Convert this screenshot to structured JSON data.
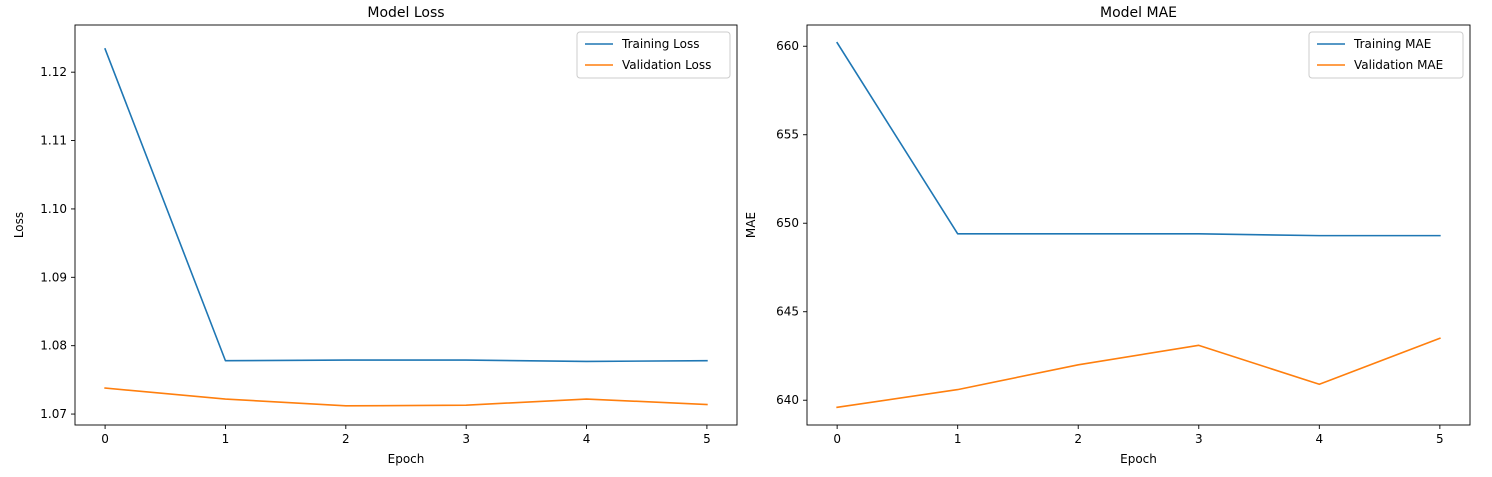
{
  "chart_data": [
    {
      "type": "line",
      "title": "Model Loss",
      "xlabel": "Epoch",
      "ylabel": "Loss",
      "x": [
        0,
        1,
        2,
        3,
        4,
        5
      ],
      "xlim": [
        -0.25,
        5.25
      ],
      "ylim": [
        1.0684,
        1.1269
      ],
      "xticks": [
        0,
        1,
        2,
        3,
        4,
        5
      ],
      "yticks": [
        1.07,
        1.08,
        1.09,
        1.1,
        1.11,
        1.12
      ],
      "ytick_labels": [
        "1.07",
        "1.08",
        "1.09",
        "1.10",
        "1.11",
        "1.12"
      ],
      "grid": false,
      "legend": "top-right",
      "series": [
        {
          "name": "Training Loss",
          "color": "#1f77b4",
          "values": [
            1.1234,
            1.0778,
            1.0779,
            1.0779,
            1.0777,
            1.0778
          ]
        },
        {
          "name": "Validation Loss",
          "color": "#ff7f0e",
          "values": [
            1.0738,
            1.0722,
            1.0712,
            1.0713,
            1.0722,
            1.0714
          ]
        }
      ]
    },
    {
      "type": "line",
      "title": "Model MAE",
      "xlabel": "Epoch",
      "ylabel": "MAE",
      "x": [
        0,
        1,
        2,
        3,
        4,
        5
      ],
      "xlim": [
        -0.25,
        5.25
      ],
      "ylim": [
        638.6,
        661.2
      ],
      "xticks": [
        0,
        1,
        2,
        3,
        4,
        5
      ],
      "yticks": [
        640,
        645,
        650,
        655,
        660
      ],
      "ytick_labels": [
        "640",
        "645",
        "650",
        "655",
        "660"
      ],
      "grid": false,
      "legend": "top-right",
      "series": [
        {
          "name": "Training MAE",
          "color": "#1f77b4",
          "values": [
            660.2,
            649.4,
            649.4,
            649.4,
            649.3,
            649.3
          ]
        },
        {
          "name": "Validation MAE",
          "color": "#ff7f0e",
          "values": [
            639.6,
            640.6,
            642.0,
            643.1,
            640.9,
            643.5
          ]
        }
      ]
    }
  ]
}
